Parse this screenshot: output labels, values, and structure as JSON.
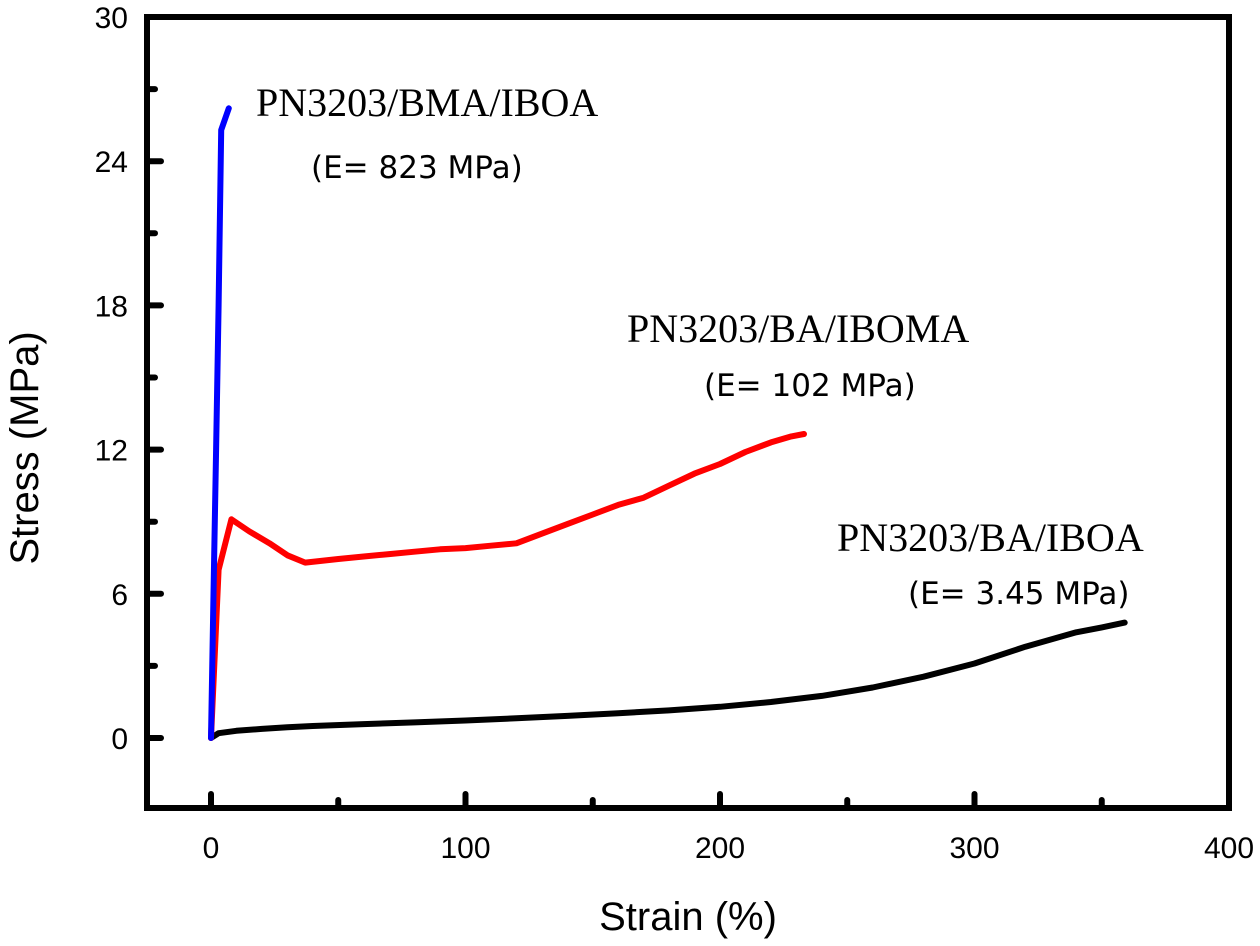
{
  "chart_data": {
    "type": "line",
    "title": "",
    "xlabel": "Strain (%)",
    "ylabel": "Stress (MPa)",
    "xlim": [
      -25,
      400
    ],
    "ylim": [
      -3,
      30
    ],
    "x_major_ticks": [
      0,
      100,
      200,
      300,
      400
    ],
    "x_minor_ticks": [
      50,
      150,
      250,
      350
    ],
    "x_tick_labels": [
      "0",
      "100",
      "200",
      "300",
      "400"
    ],
    "y_major_ticks": [
      0,
      6,
      12,
      18,
      24,
      30
    ],
    "y_minor_ticks": [
      3,
      9,
      15,
      21,
      27
    ],
    "y_tick_labels": [
      "0",
      "6",
      "12",
      "18",
      "24",
      "30"
    ],
    "grid": false,
    "legend": "none",
    "series": [
      {
        "name": "PN3203/BMA/IBOA",
        "modulus_label": "(E= 823 MPa)",
        "color": "#0000ff",
        "x": [
          0,
          1,
          2,
          3,
          4,
          7
        ],
        "y": [
          0,
          6,
          12,
          18,
          25.3,
          26.2
        ]
      },
      {
        "name": "PN3203/BA/IBOMA",
        "modulus_label": "(E= 102 MPa)",
        "color": "#ff0000",
        "x": [
          0,
          3,
          8,
          15,
          23,
          30,
          37,
          50,
          60,
          70,
          80,
          90,
          100,
          110,
          120,
          130,
          140,
          150,
          160,
          170,
          180,
          190,
          200,
          210,
          220,
          228,
          233
        ],
        "y": [
          0,
          7.0,
          9.1,
          8.6,
          8.1,
          7.6,
          7.3,
          7.45,
          7.55,
          7.65,
          7.75,
          7.85,
          7.9,
          8.0,
          8.1,
          8.5,
          8.9,
          9.3,
          9.7,
          10.0,
          10.5,
          11.0,
          11.4,
          11.9,
          12.3,
          12.55,
          12.65
        ]
      },
      {
        "name": "PN3203/BA/IBOA",
        "modulus_label": "(E= 3.45 MPa)",
        "color": "#000000",
        "x": [
          0,
          3,
          10,
          20,
          30,
          40,
          60,
          80,
          100,
          120,
          140,
          160,
          180,
          200,
          220,
          240,
          260,
          280,
          300,
          320,
          340,
          350,
          359
        ],
        "y": [
          0,
          0.2,
          0.3,
          0.38,
          0.45,
          0.5,
          0.58,
          0.65,
          0.73,
          0.82,
          0.92,
          1.03,
          1.15,
          1.3,
          1.5,
          1.75,
          2.1,
          2.55,
          3.1,
          3.8,
          4.4,
          4.6,
          4.8
        ]
      }
    ],
    "annotations": [
      {
        "series": 0,
        "line1": "PN3203/BMA/IBOA",
        "line2": "(E= 823 MPa)"
      },
      {
        "series": 1,
        "line1": "PN3203/BA/IBOMA",
        "line2": "(E= 102 MPa)"
      },
      {
        "series": 2,
        "line1": "PN3203/BA/IBOA",
        "line2": "(E= 3.45 MPa)"
      }
    ]
  }
}
